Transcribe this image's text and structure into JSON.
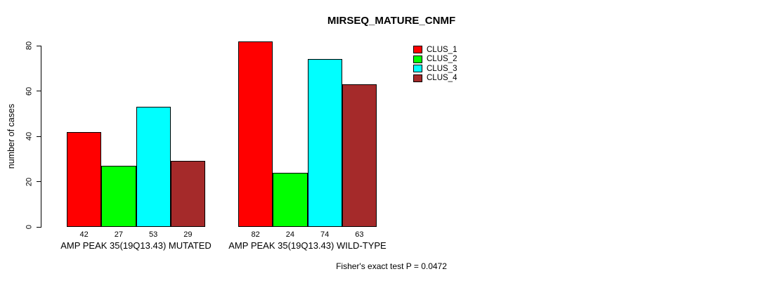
{
  "chart_data": {
    "type": "bar",
    "title": "MIRSEQ_MATURE_CNMF",
    "ylabel": "number of cases",
    "xlabel": "",
    "annotation": "Fisher's exact test P = 0.0472",
    "categories": [
      "AMP PEAK 35(19Q13.43) MUTATED",
      "AMP PEAK 35(19Q13.43) WILD-TYPE"
    ],
    "series": [
      {
        "name": "CLUS_1",
        "color": "#FF0000",
        "values": [
          42,
          82
        ]
      },
      {
        "name": "CLUS_2",
        "color": "#00FF00",
        "values": [
          27,
          24
        ]
      },
      {
        "name": "CLUS_3",
        "color": "#00FFFF",
        "values": [
          53,
          74
        ]
      },
      {
        "name": "CLUS_4",
        "color": "#A52A2A",
        "values": [
          29,
          63
        ]
      }
    ],
    "bar_value_labels": [
      [
        42,
        27,
        53,
        29
      ],
      [
        82,
        24,
        74,
        63
      ]
    ],
    "yticks": [
      0,
      20,
      40,
      60,
      80
    ],
    "ylim": [
      0,
      80
    ],
    "grid": false,
    "legend_position": "top-right",
    "bar_border_color": "#000000",
    "background_color": "#FFFFFF"
  }
}
